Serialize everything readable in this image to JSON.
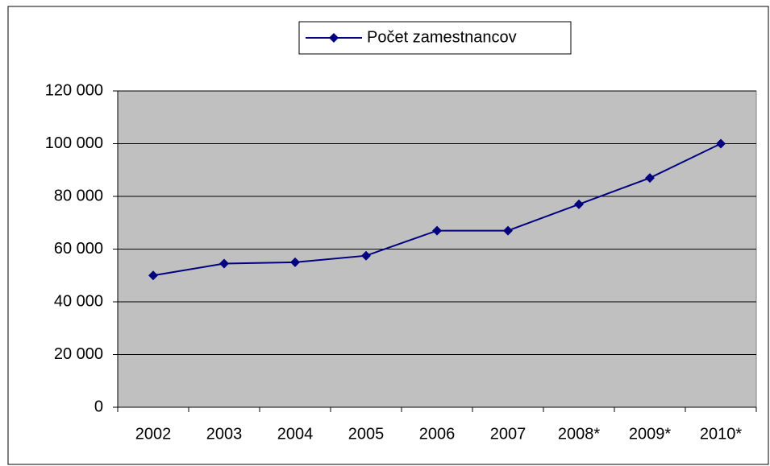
{
  "chart_data": {
    "type": "line",
    "categories": [
      "2002",
      "2003",
      "2004",
      "2005",
      "2006",
      "2007",
      "2008*",
      "2009*",
      "2010*"
    ],
    "series": [
      {
        "name": "Počet zamestnancov",
        "color": "#000080",
        "values": [
          50000,
          54500,
          55000,
          57500,
          67000,
          67000,
          77000,
          87000,
          100000
        ]
      }
    ],
    "ylim": [
      0,
      120000
    ],
    "yticks": [
      0,
      {
        "value": 20000,
        "label": "20 000"
      },
      {
        "value": 40000,
        "label": "40 000"
      },
      {
        "value": 60000,
        "label": "60 000"
      },
      {
        "value": 80000,
        "label": "80 000"
      },
      {
        "value": 100000,
        "label": "100 000"
      },
      {
        "value": 120000,
        "label": "120 000"
      }
    ],
    "grid": true,
    "legend": "top"
  }
}
